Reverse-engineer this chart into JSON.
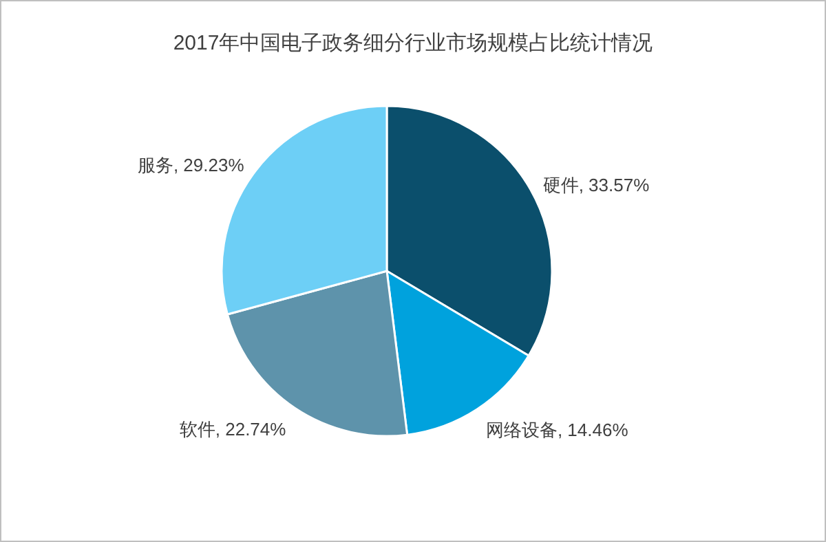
{
  "chart_data": {
    "type": "pie",
    "title": "2017年中国电子政务细分行业市场规模占比统计情况",
    "categories": [
      "硬件",
      "网络设备",
      "软件",
      "服务"
    ],
    "values": [
      33.57,
      14.46,
      22.74,
      29.23
    ],
    "value_labels": [
      "33.57%",
      "14.46%",
      "22.74%",
      "29.23%"
    ],
    "colors": [
      "#0b4f6c",
      "#00a2dd",
      "#5e93ab",
      "#6dcff6"
    ]
  }
}
